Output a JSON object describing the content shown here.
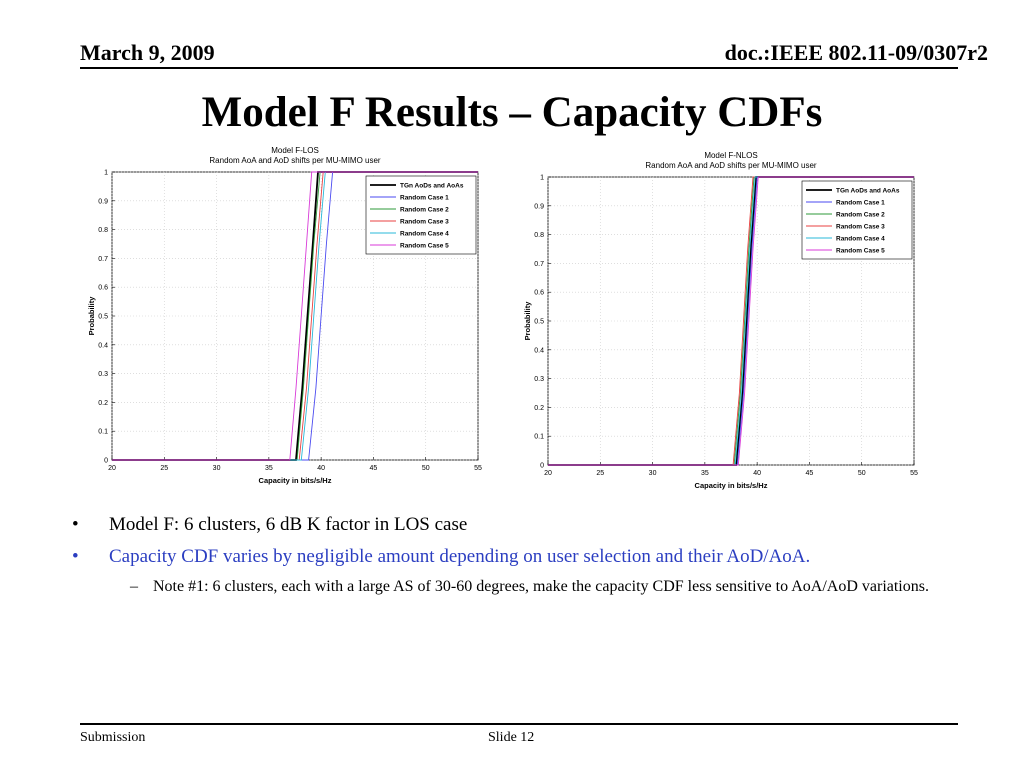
{
  "header": {
    "date": "March 9, 2009",
    "doc": "doc.:IEEE 802.11-09/0307r2"
  },
  "slide": {
    "title": "Model F Results – Capacity CDFs"
  },
  "bullets": {
    "b1": "Model F: 6 clusters, 6 dB K factor in LOS case",
    "b2": "Capacity CDF varies by negligible amount depending on user selection and their AoD/AoA.",
    "b3": "Note #1:  6 clusters, each with a large AS of 30-60 degrees, make the capacity CDF less sensitive to AoA/AoD variations.",
    "mark_main": "•",
    "mark_sub": "–"
  },
  "footer": {
    "left": "Submission",
    "center": "Slide 12"
  },
  "colors": {
    "tgn": "#000000",
    "case1": "#4a4af0",
    "case2": "#2e9a3a",
    "case3": "#e84040",
    "case4": "#29b8d8",
    "case5": "#d83ad8",
    "grid": "#cccccc"
  },
  "chart_data": [
    {
      "type": "line",
      "title": "Model F-LOS",
      "subtitle": "Random AoA and AoD shifts per MU-MIMO user",
      "xlabel": "Capacity in bits/s/Hz",
      "ylabel": "Probability",
      "xlim": [
        20,
        55
      ],
      "ylim": [
        0,
        1
      ],
      "xticks": [
        20,
        25,
        30,
        35,
        40,
        45,
        50,
        55
      ],
      "yticks": [
        0,
        0.1,
        0.2,
        0.3,
        0.4,
        0.5,
        0.6,
        0.7,
        0.8,
        0.9,
        1
      ],
      "grid": true,
      "legend_position": "top-right",
      "series": [
        {
          "name": "TGn AoDs and AoAs",
          "color_key": "tgn",
          "x": [
            20,
            37.6,
            38.2,
            38.7,
            39.2,
            39.7,
            55
          ],
          "y": [
            0,
            0,
            0.25,
            0.5,
            0.75,
            1,
            1
          ]
        },
        {
          "name": "Random Case 1",
          "color_key": "case1",
          "x": [
            20,
            38.8,
            39.5,
            40.0,
            40.5,
            41.1,
            55
          ],
          "y": [
            0,
            0,
            0.25,
            0.5,
            0.75,
            1,
            1
          ]
        },
        {
          "name": "Random Case 2",
          "color_key": "case2",
          "x": [
            20,
            37.7,
            38.3,
            38.8,
            39.3,
            39.9,
            55
          ],
          "y": [
            0,
            0,
            0.25,
            0.5,
            0.75,
            1,
            1
          ]
        },
        {
          "name": "Random Case 3",
          "color_key": "case3",
          "x": [
            20,
            37.9,
            38.6,
            39.1,
            39.6,
            40.2,
            55
          ],
          "y": [
            0,
            0,
            0.25,
            0.5,
            0.75,
            1,
            1
          ]
        },
        {
          "name": "Random Case 4",
          "color_key": "case4",
          "x": [
            20,
            38.1,
            38.8,
            39.3,
            39.8,
            40.4,
            55
          ],
          "y": [
            0,
            0,
            0.25,
            0.5,
            0.75,
            1,
            1
          ]
        },
        {
          "name": "Random Case 5",
          "color_key": "case5",
          "x": [
            20,
            37.0,
            37.6,
            38.1,
            38.6,
            39.1,
            55
          ],
          "y": [
            0,
            0,
            0.25,
            0.5,
            0.75,
            1,
            1
          ]
        }
      ]
    },
    {
      "type": "line",
      "title": "Model F-NLOS",
      "subtitle": "Random AoA and AoD shifts per MU-MIMO user",
      "xlabel": "Capacity in bits/s/Hz",
      "ylabel": "Probability",
      "xlim": [
        20,
        55
      ],
      "ylim": [
        0,
        1
      ],
      "xticks": [
        20,
        25,
        30,
        35,
        40,
        45,
        50,
        55
      ],
      "yticks": [
        0,
        0.1,
        0.2,
        0.3,
        0.4,
        0.5,
        0.6,
        0.7,
        0.8,
        0.9,
        1
      ],
      "grid": true,
      "legend_position": "top-right",
      "series": [
        {
          "name": "TGn AoDs and AoAs",
          "color_key": "tgn",
          "x": [
            20,
            38.0,
            38.6,
            39.0,
            39.4,
            39.9,
            55
          ],
          "y": [
            0,
            0,
            0.25,
            0.5,
            0.75,
            1,
            1
          ]
        },
        {
          "name": "Random Case 1",
          "color_key": "case1",
          "x": [
            20,
            38.1,
            38.7,
            39.1,
            39.5,
            40.0,
            55
          ],
          "y": [
            0,
            0,
            0.25,
            0.5,
            0.75,
            1,
            1
          ]
        },
        {
          "name": "Random Case 2",
          "color_key": "case2",
          "x": [
            20,
            37.8,
            38.4,
            38.8,
            39.2,
            39.7,
            55
          ],
          "y": [
            0,
            0,
            0.25,
            0.5,
            0.75,
            1,
            1
          ]
        },
        {
          "name": "Random Case 3",
          "color_key": "case3",
          "x": [
            20,
            37.7,
            38.3,
            38.7,
            39.1,
            39.6,
            55
          ],
          "y": [
            0,
            0,
            0.25,
            0.5,
            0.75,
            1,
            1
          ]
        },
        {
          "name": "Random Case 4",
          "color_key": "case4",
          "x": [
            20,
            37.9,
            38.5,
            38.9,
            39.3,
            39.8,
            55
          ],
          "y": [
            0,
            0,
            0.25,
            0.5,
            0.75,
            1,
            1
          ]
        },
        {
          "name": "Random Case 5",
          "color_key": "case5",
          "x": [
            20,
            38.2,
            38.8,
            39.2,
            39.6,
            40.1,
            55
          ],
          "y": [
            0,
            0,
            0.25,
            0.5,
            0.75,
            1,
            1
          ]
        }
      ]
    }
  ]
}
